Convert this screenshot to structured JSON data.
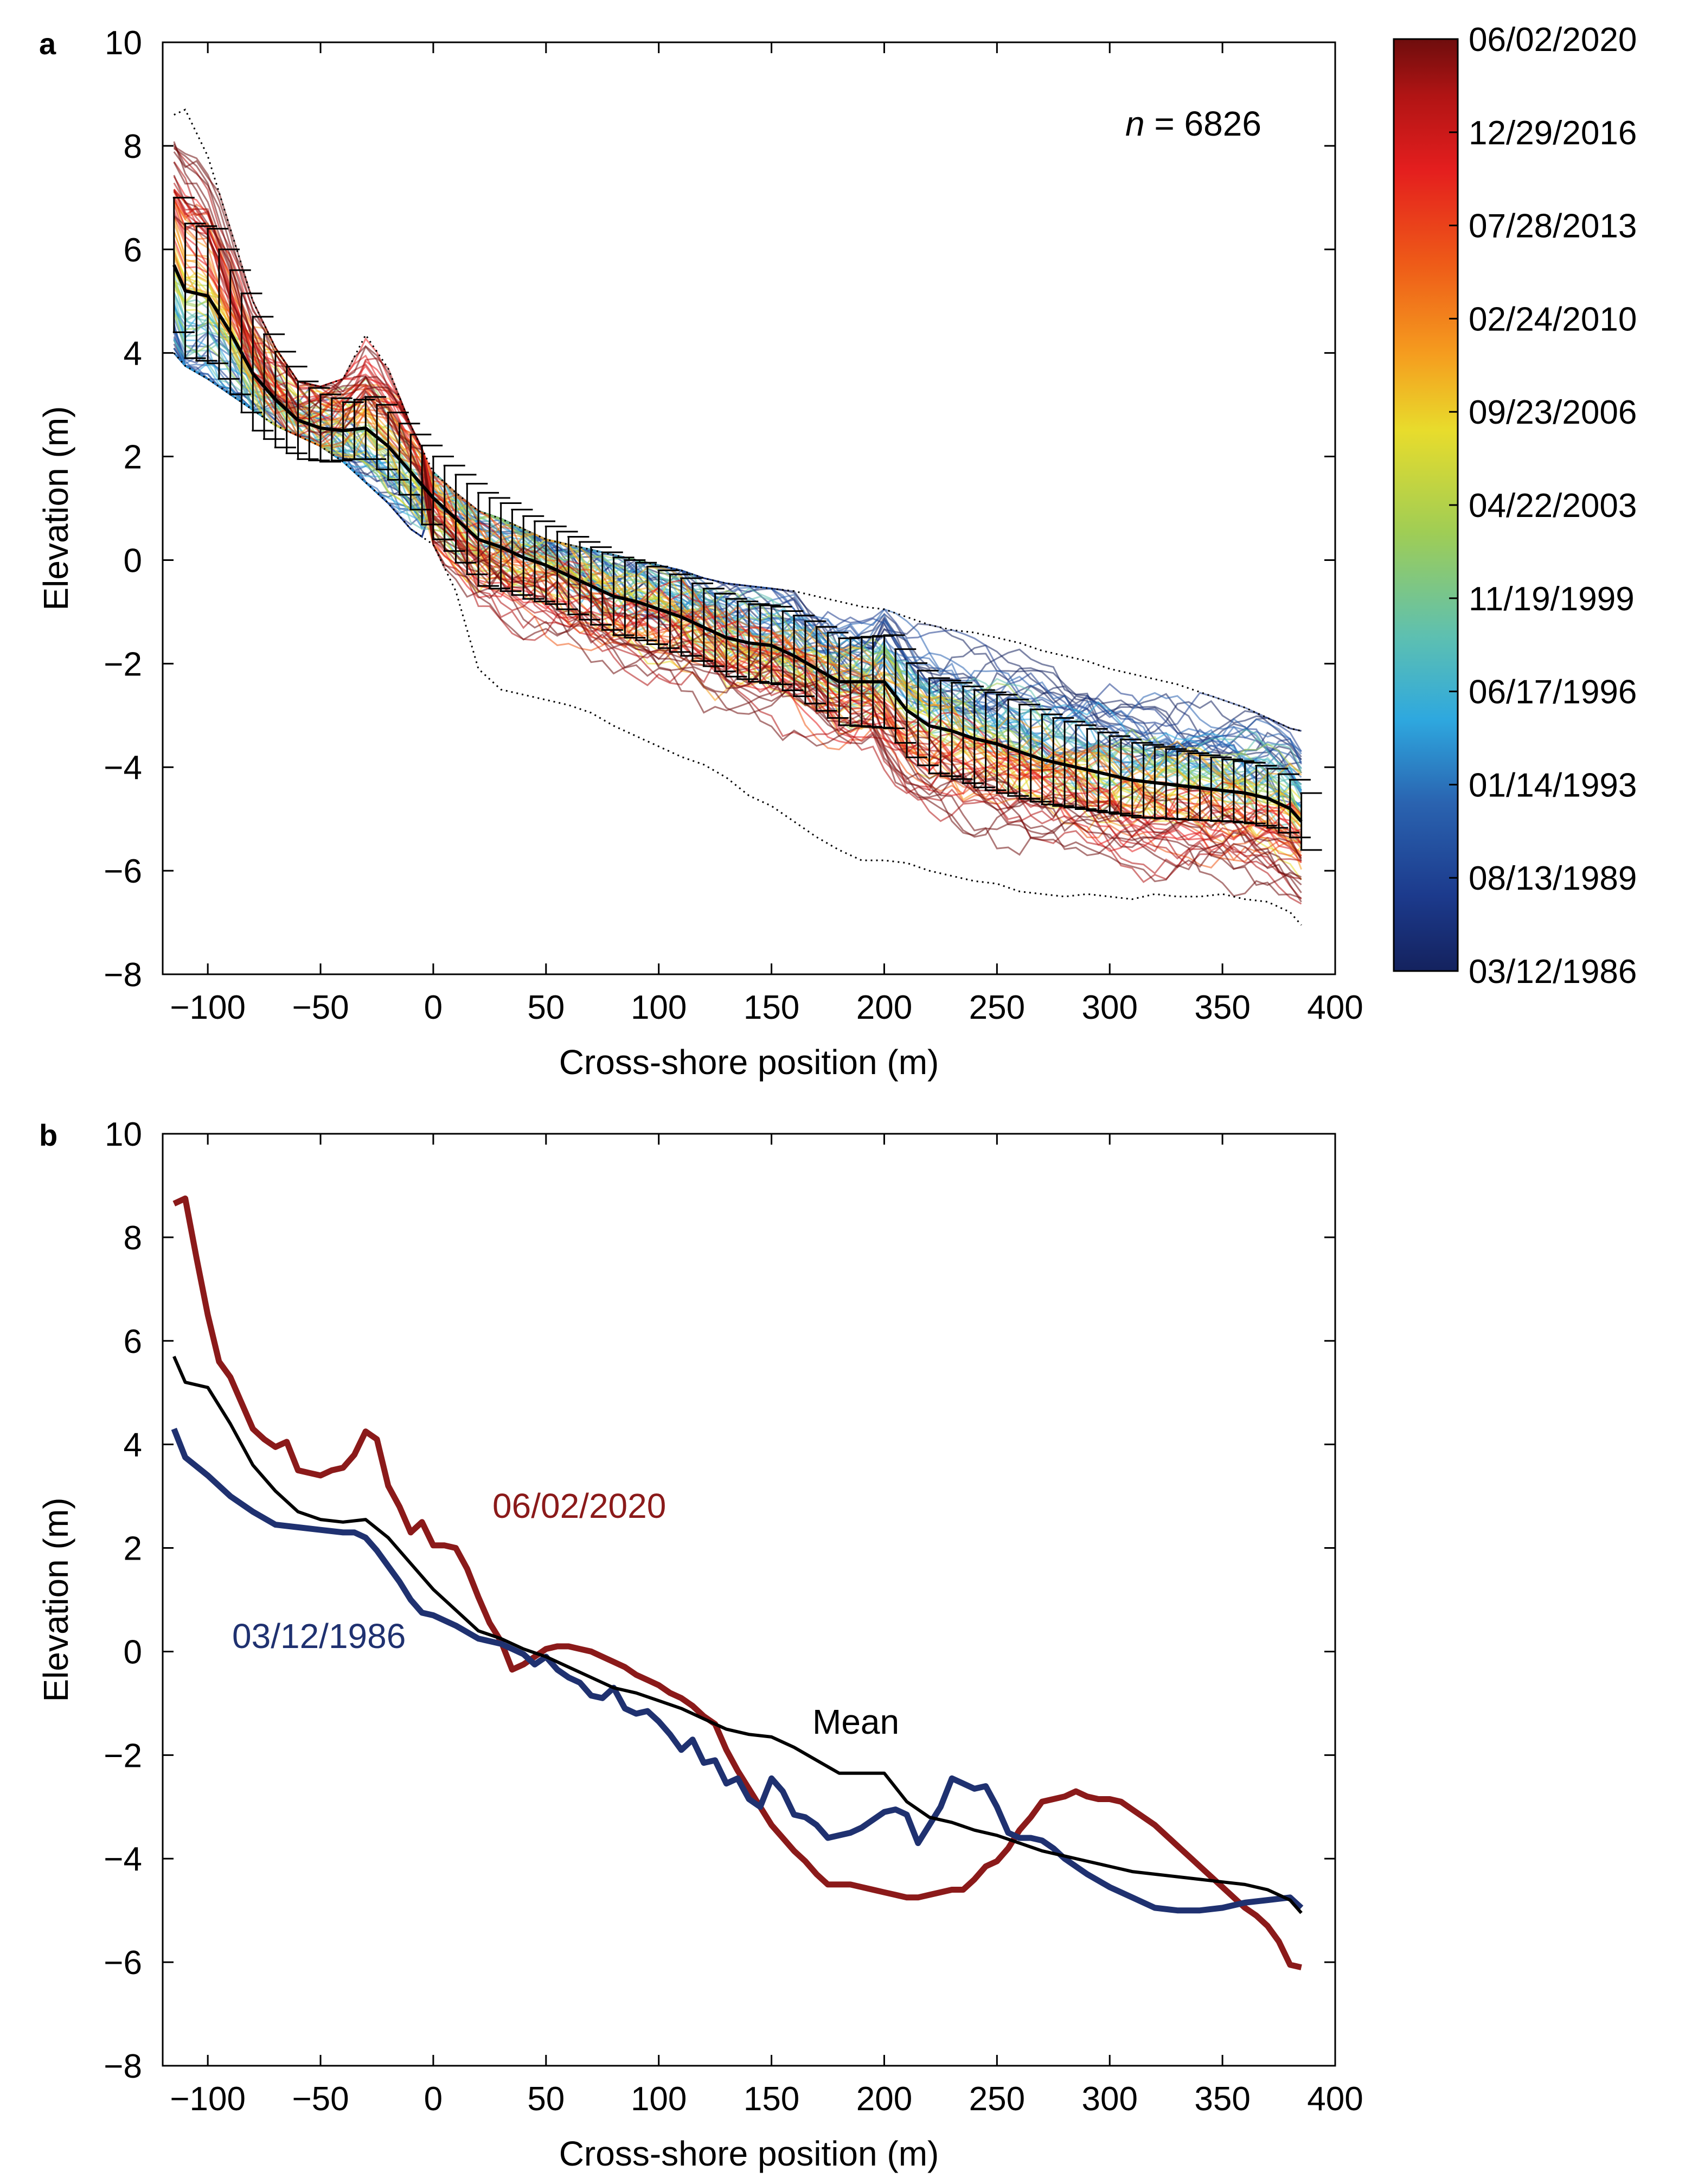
{
  "chart_data": [
    {
      "panel": "a",
      "type": "line",
      "title": "",
      "xlabel": "Cross-shore position (m)",
      "ylabel": "Elevation (m)",
      "xlim": [
        -120,
        400
      ],
      "ylim": [
        -8,
        10
      ],
      "xticks": [
        -100,
        -50,
        0,
        50,
        100,
        150,
        200,
        250,
        300,
        350,
        400
      ],
      "yticks": [
        -8,
        -6,
        -4,
        -2,
        0,
        2,
        4,
        6,
        8,
        10
      ],
      "xtick_labels": [
        "−100",
        "−50",
        "0",
        "50",
        "100",
        "150",
        "200",
        "250",
        "300",
        "350",
        "400"
      ],
      "ytick_labels": [
        "−8",
        "−6",
        "−4",
        "−2",
        "0",
        "2",
        "4",
        "6",
        "8",
        "10"
      ],
      "annotation": {
        "italic": "n",
        "rest": " = 6826"
      },
      "n_profiles": 6826,
      "colorbar": {
        "labels": [
          "06/02/2020",
          "12/29/2016",
          "07/28/2013",
          "02/24/2010",
          "09/23/2006",
          "04/22/2003",
          "11/19/1999",
          "06/17/1996",
          "01/14/1993",
          "08/13/1989",
          "03/12/1986"
        ],
        "colors": [
          "#6e0d0d",
          "#b01414",
          "#e41e1e",
          "#ee5a18",
          "#f59e1f",
          "#e8dc2c",
          "#9fcd55",
          "#5ec0b0",
          "#2ea8df",
          "#2a63b0",
          "#1c3a8c",
          "#14225e"
        ]
      },
      "series": [
        {
          "name": "Mean",
          "color": "#000000",
          "x": [
            -115,
            -110,
            -100,
            -90,
            -80,
            -70,
            -60,
            -50,
            -40,
            -30,
            -20,
            -10,
            0,
            10,
            20,
            30,
            40,
            50,
            60,
            70,
            80,
            90,
            100,
            110,
            120,
            130,
            140,
            150,
            160,
            170,
            180,
            190,
            200,
            210,
            220,
            230,
            240,
            250,
            260,
            270,
            280,
            290,
            300,
            310,
            320,
            330,
            340,
            350,
            360,
            370,
            380,
            385
          ],
          "y": [
            5.7,
            5.2,
            5.1,
            4.4,
            3.6,
            3.1,
            2.7,
            2.55,
            2.5,
            2.55,
            2.2,
            1.7,
            1.2,
            0.8,
            0.4,
            0.25,
            0.05,
            -0.1,
            -0.3,
            -0.5,
            -0.7,
            -0.8,
            -0.95,
            -1.1,
            -1.3,
            -1.5,
            -1.6,
            -1.65,
            -1.85,
            -2.1,
            -2.35,
            -2.35,
            -2.35,
            -2.9,
            -3.2,
            -3.3,
            -3.45,
            -3.55,
            -3.7,
            -3.85,
            -3.95,
            -4.05,
            -4.15,
            -4.25,
            -4.3,
            -4.35,
            -4.4,
            -4.45,
            -4.5,
            -4.6,
            -4.8,
            -5.05
          ]
        },
        {
          "name": "Std error bar half-width",
          "color": "#000000",
          "x": [
            -115,
            -100,
            -80,
            -60,
            -40,
            -30,
            -20,
            0,
            20,
            50,
            100,
            150,
            200,
            250,
            300,
            350,
            385
          ],
          "y": [
            1.3,
            1.3,
            1.1,
            0.75,
            0.55,
            0.6,
            0.65,
            0.8,
            0.9,
            0.75,
            0.75,
            0.75,
            0.9,
            0.95,
            0.75,
            0.6,
            0.55
          ]
        },
        {
          "name": "Envelope maximum",
          "color": "#000000",
          "x": [
            -115,
            -110,
            -100,
            -90,
            -80,
            -70,
            -60,
            -50,
            -40,
            -30,
            -20,
            -10,
            0,
            10,
            20,
            30,
            40,
            50,
            60,
            70,
            80,
            90,
            100,
            110,
            120,
            130,
            140,
            150,
            160,
            170,
            180,
            190,
            200,
            210,
            220,
            230,
            240,
            250,
            260,
            270,
            280,
            290,
            300,
            310,
            320,
            330,
            340,
            350,
            360,
            370,
            380,
            385
          ],
          "y": [
            8.6,
            8.7,
            7.8,
            6.4,
            5.0,
            4.1,
            3.45,
            3.35,
            3.5,
            4.35,
            3.7,
            2.6,
            1.7,
            1.3,
            0.95,
            0.8,
            0.6,
            0.4,
            0.3,
            0.2,
            0.1,
            0.0,
            -0.1,
            -0.2,
            -0.35,
            -0.45,
            -0.5,
            -0.55,
            -0.6,
            -0.7,
            -0.8,
            -0.9,
            -0.95,
            -1.1,
            -1.25,
            -1.35,
            -1.4,
            -1.5,
            -1.6,
            -1.75,
            -1.85,
            -1.95,
            -2.1,
            -2.2,
            -2.3,
            -2.4,
            -2.55,
            -2.7,
            -2.85,
            -3.05,
            -3.25,
            -3.3
          ]
        },
        {
          "name": "Envelope minimum",
          "color": "#000000",
          "x": [
            -115,
            -110,
            -100,
            -90,
            -80,
            -70,
            -60,
            -50,
            -40,
            -30,
            -20,
            -10,
            0,
            10,
            20,
            30,
            40,
            50,
            60,
            70,
            80,
            90,
            100,
            110,
            120,
            130,
            140,
            150,
            160,
            170,
            180,
            190,
            200,
            210,
            220,
            230,
            240,
            250,
            260,
            270,
            280,
            290,
            300,
            310,
            320,
            330,
            340,
            350,
            360,
            370,
            380,
            385
          ],
          "y": [
            4.0,
            3.75,
            3.5,
            3.2,
            2.9,
            2.6,
            2.4,
            2.2,
            1.9,
            1.5,
            1.1,
            0.6,
            0.3,
            -0.6,
            -2.1,
            -2.5,
            -2.6,
            -2.7,
            -2.8,
            -2.95,
            -3.2,
            -3.4,
            -3.6,
            -3.8,
            -3.95,
            -4.2,
            -4.55,
            -4.75,
            -5.05,
            -5.35,
            -5.6,
            -5.8,
            -5.8,
            -5.85,
            -6.0,
            -6.1,
            -6.2,
            -6.25,
            -6.4,
            -6.45,
            -6.5,
            -6.45,
            -6.5,
            -6.55,
            -6.45,
            -6.5,
            -6.5,
            -6.45,
            -6.55,
            -6.6,
            -6.8,
            -7.05
          ]
        }
      ]
    },
    {
      "panel": "b",
      "type": "line",
      "title": "",
      "xlabel": "Cross-shore position (m)",
      "ylabel": "Elevation (m)",
      "xlim": [
        -120,
        400
      ],
      "ylim": [
        -8,
        10
      ],
      "xticks": [
        -100,
        -50,
        0,
        50,
        100,
        150,
        200,
        250,
        300,
        350,
        400
      ],
      "yticks": [
        -8,
        -6,
        -4,
        -2,
        0,
        2,
        4,
        6,
        8,
        10
      ],
      "xtick_labels": [
        "−100",
        "−50",
        "0",
        "50",
        "100",
        "150",
        "200",
        "250",
        "300",
        "350",
        "400"
      ],
      "ytick_labels": [
        "−8",
        "−6",
        "−4",
        "−2",
        "0",
        "2",
        "4",
        "6",
        "8",
        "10"
      ],
      "series": [
        {
          "name": "06/02/2020",
          "label_text": "06/02/2020",
          "color": "#8b1a1a",
          "x": [
            -115,
            -110,
            -105,
            -100,
            -95,
            -90,
            -85,
            -80,
            -75,
            -70,
            -65,
            -60,
            -55,
            -50,
            -45,
            -40,
            -35,
            -30,
            -25,
            -20,
            -15,
            -10,
            -5,
            0,
            5,
            10,
            15,
            20,
            25,
            30,
            35,
            40,
            45,
            50,
            55,
            60,
            65,
            70,
            75,
            80,
            85,
            90,
            95,
            100,
            105,
            110,
            115,
            120,
            125,
            130,
            135,
            140,
            145,
            150,
            155,
            160,
            165,
            170,
            175,
            180,
            185,
            190,
            195,
            200,
            205,
            210,
            215,
            220,
            225,
            230,
            235,
            240,
            245,
            250,
            255,
            260,
            265,
            270,
            275,
            280,
            285,
            290,
            295,
            300,
            305,
            310,
            315,
            320,
            325,
            330,
            335,
            340,
            345,
            350,
            355,
            360,
            365,
            370,
            375,
            380,
            385
          ],
          "y": [
            8.65,
            8.75,
            7.6,
            6.5,
            5.6,
            5.3,
            4.8,
            4.3,
            4.1,
            3.95,
            4.05,
            3.5,
            3.45,
            3.4,
            3.5,
            3.55,
            3.8,
            4.25,
            4.1,
            3.2,
            2.8,
            2.3,
            2.5,
            2.05,
            2.05,
            2.0,
            1.6,
            1.05,
            0.55,
            0.2,
            -0.35,
            -0.25,
            -0.1,
            0.05,
            0.1,
            0.1,
            0.05,
            0.0,
            -0.1,
            -0.2,
            -0.3,
            -0.45,
            -0.55,
            -0.65,
            -0.8,
            -0.9,
            -1.05,
            -1.25,
            -1.4,
            -1.9,
            -2.3,
            -2.65,
            -3.0,
            -3.35,
            -3.6,
            -3.85,
            -4.05,
            -4.3,
            -4.5,
            -4.5,
            -4.5,
            -4.55,
            -4.6,
            -4.65,
            -4.7,
            -4.75,
            -4.75,
            -4.7,
            -4.65,
            -4.6,
            -4.6,
            -4.4,
            -4.15,
            -4.05,
            -3.8,
            -3.45,
            -3.2,
            -2.9,
            -2.85,
            -2.8,
            -2.7,
            -2.8,
            -2.85,
            -2.85,
            -2.9,
            -3.05,
            -3.2,
            -3.35,
            -3.55,
            -3.75,
            -3.95,
            -4.15,
            -4.35,
            -4.55,
            -4.75,
            -4.95,
            -5.1,
            -5.3,
            -5.6,
            -6.05,
            -6.1
          ]
        },
        {
          "name": "03/12/1986",
          "label_text": "03/12/1986",
          "color": "#1f3170",
          "x": [
            -115,
            -110,
            -100,
            -90,
            -80,
            -70,
            -60,
            -50,
            -40,
            -35,
            -30,
            -25,
            -20,
            -15,
            -10,
            -5,
            0,
            10,
            20,
            30,
            40,
            45,
            50,
            55,
            60,
            65,
            70,
            75,
            80,
            85,
            90,
            95,
            100,
            105,
            110,
            115,
            120,
            125,
            130,
            135,
            140,
            145,
            150,
            155,
            160,
            165,
            170,
            175,
            180,
            185,
            190,
            195,
            200,
            205,
            210,
            215,
            220,
            225,
            230,
            235,
            240,
            245,
            250,
            255,
            260,
            265,
            270,
            275,
            280,
            290,
            300,
            310,
            320,
            330,
            340,
            350,
            360,
            370,
            380,
            385
          ],
          "y": [
            4.3,
            3.75,
            3.4,
            3.0,
            2.7,
            2.45,
            2.4,
            2.35,
            2.3,
            2.3,
            2.2,
            1.95,
            1.65,
            1.35,
            1.0,
            0.75,
            0.7,
            0.5,
            0.25,
            0.15,
            -0.05,
            -0.25,
            -0.1,
            -0.35,
            -0.5,
            -0.6,
            -0.85,
            -0.9,
            -0.7,
            -1.1,
            -1.2,
            -1.15,
            -1.35,
            -1.6,
            -1.9,
            -1.7,
            -2.15,
            -2.1,
            -2.55,
            -2.45,
            -2.85,
            -3.0,
            -2.45,
            -2.7,
            -3.15,
            -3.2,
            -3.35,
            -3.6,
            -3.55,
            -3.5,
            -3.4,
            -3.25,
            -3.1,
            -3.05,
            -3.15,
            -3.7,
            -3.35,
            -3.0,
            -2.45,
            -2.55,
            -2.65,
            -2.6,
            -3.0,
            -3.5,
            -3.6,
            -3.6,
            -3.65,
            -3.8,
            -4.0,
            -4.3,
            -4.55,
            -4.75,
            -4.95,
            -5.0,
            -5.0,
            -4.95,
            -4.85,
            -4.8,
            -4.75,
            -4.95
          ]
        },
        {
          "name": "Mean",
          "label_text": "Mean",
          "color": "#000000",
          "x": [
            -115,
            -110,
            -100,
            -90,
            -80,
            -70,
            -60,
            -50,
            -40,
            -30,
            -20,
            -10,
            0,
            10,
            20,
            30,
            40,
            50,
            60,
            70,
            80,
            90,
            100,
            110,
            120,
            130,
            140,
            150,
            160,
            170,
            180,
            190,
            200,
            210,
            220,
            230,
            240,
            250,
            260,
            270,
            280,
            290,
            300,
            310,
            320,
            330,
            340,
            350,
            360,
            370,
            380,
            385
          ],
          "y": [
            5.7,
            5.2,
            5.1,
            4.4,
            3.6,
            3.1,
            2.7,
            2.55,
            2.5,
            2.55,
            2.2,
            1.7,
            1.2,
            0.8,
            0.4,
            0.25,
            0.05,
            -0.1,
            -0.3,
            -0.5,
            -0.7,
            -0.8,
            -0.95,
            -1.1,
            -1.3,
            -1.5,
            -1.6,
            -1.65,
            -1.85,
            -2.1,
            -2.35,
            -2.35,
            -2.35,
            -2.9,
            -3.2,
            -3.3,
            -3.45,
            -3.55,
            -3.7,
            -3.85,
            -3.95,
            -4.05,
            -4.15,
            -4.25,
            -4.3,
            -4.35,
            -4.4,
            -4.45,
            -4.5,
            -4.6,
            -4.8,
            -5.05
          ]
        }
      ]
    }
  ]
}
